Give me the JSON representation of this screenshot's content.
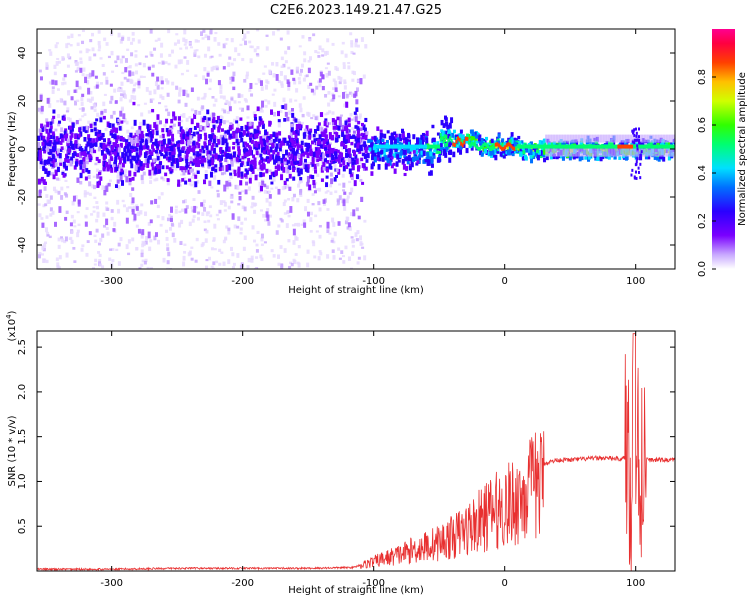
{
  "title": "C2E6.2023.149.21.47.G25",
  "chart_data": [
    {
      "type": "heatmap",
      "xlabel": "Height of straight line (km)",
      "ylabel": "Frequency (Hz)",
      "xlim": [
        -357,
        130
      ],
      "ylim": [
        -50,
        50
      ],
      "xticks": [
        -300,
        -200,
        -100,
        0,
        100
      ],
      "yticks": [
        -40,
        -20,
        0,
        20,
        40
      ],
      "colorbar": {
        "label": "Normalized spectral amplitude",
        "range": [
          0,
          1
        ],
        "ticks": [
          "0.0",
          "0.2",
          "0.4",
          "0.6",
          "0.8"
        ],
        "colormap": "rainbow (white-purple-blue-cyan-green-yellow-red-magenta)"
      },
      "description_points": [
        {
          "x": -350,
          "amp": 0.15
        },
        {
          "x": -100,
          "amp": 0.25
        },
        {
          "x": -60,
          "amp": 0.5
        },
        {
          "x": -30,
          "amp": 0.7
        },
        {
          "x": 0,
          "amp": 0.8
        },
        {
          "x": 50,
          "amp": 0.55
        },
        {
          "x": 95,
          "amp": 0.85
        },
        {
          "x": 125,
          "amp": 0.5
        }
      ]
    },
    {
      "type": "line",
      "xlabel": "Height of straight line (km)",
      "ylabel": "SNR (10 * v/v)",
      "yscale_label": "(x10^4)",
      "xlim": [
        -357,
        130
      ],
      "ylim": [
        0,
        2.68
      ],
      "xticks": [
        -300,
        -200,
        -100,
        0,
        100
      ],
      "yticks": [
        0.5,
        1.0,
        1.5,
        2.0,
        2.5
      ],
      "ytick_labels": [
        "0.5",
        "1.0",
        "1.5",
        "2.0",
        "2.5"
      ],
      "series": [
        {
          "color": "#e83030",
          "points": [
            [
              -357,
              0.02
            ],
            [
              -300,
              0.02
            ],
            [
              -250,
              0.03
            ],
            [
              -200,
              0.03
            ],
            [
              -150,
              0.03
            ],
            [
              -115,
              0.04
            ],
            [
              -105,
              0.1
            ],
            [
              -95,
              0.15
            ],
            [
              -80,
              0.22
            ],
            [
              -70,
              0.28
            ],
            [
              -60,
              0.33
            ],
            [
              -50,
              0.38
            ],
            [
              -40,
              0.45
            ],
            [
              -30,
              0.55
            ],
            [
              -20,
              0.65
            ],
            [
              -10,
              0.78
            ],
            [
              0,
              0.85
            ],
            [
              10,
              0.95
            ],
            [
              20,
              1.1
            ],
            [
              30,
              1.2
            ],
            [
              40,
              1.24
            ],
            [
              50,
              1.24
            ],
            [
              60,
              1.25
            ],
            [
              70,
              1.26
            ],
            [
              80,
              1.26
            ],
            [
              90,
              1.25
            ],
            [
              95,
              1.3
            ],
            [
              100,
              1.2
            ],
            [
              105,
              1.25
            ],
            [
              110,
              1.24
            ],
            [
              120,
              1.24
            ],
            [
              130,
              1.24
            ]
          ]
        }
      ]
    }
  ],
  "colors": {
    "line": "#e83030",
    "frame": "#000000"
  }
}
